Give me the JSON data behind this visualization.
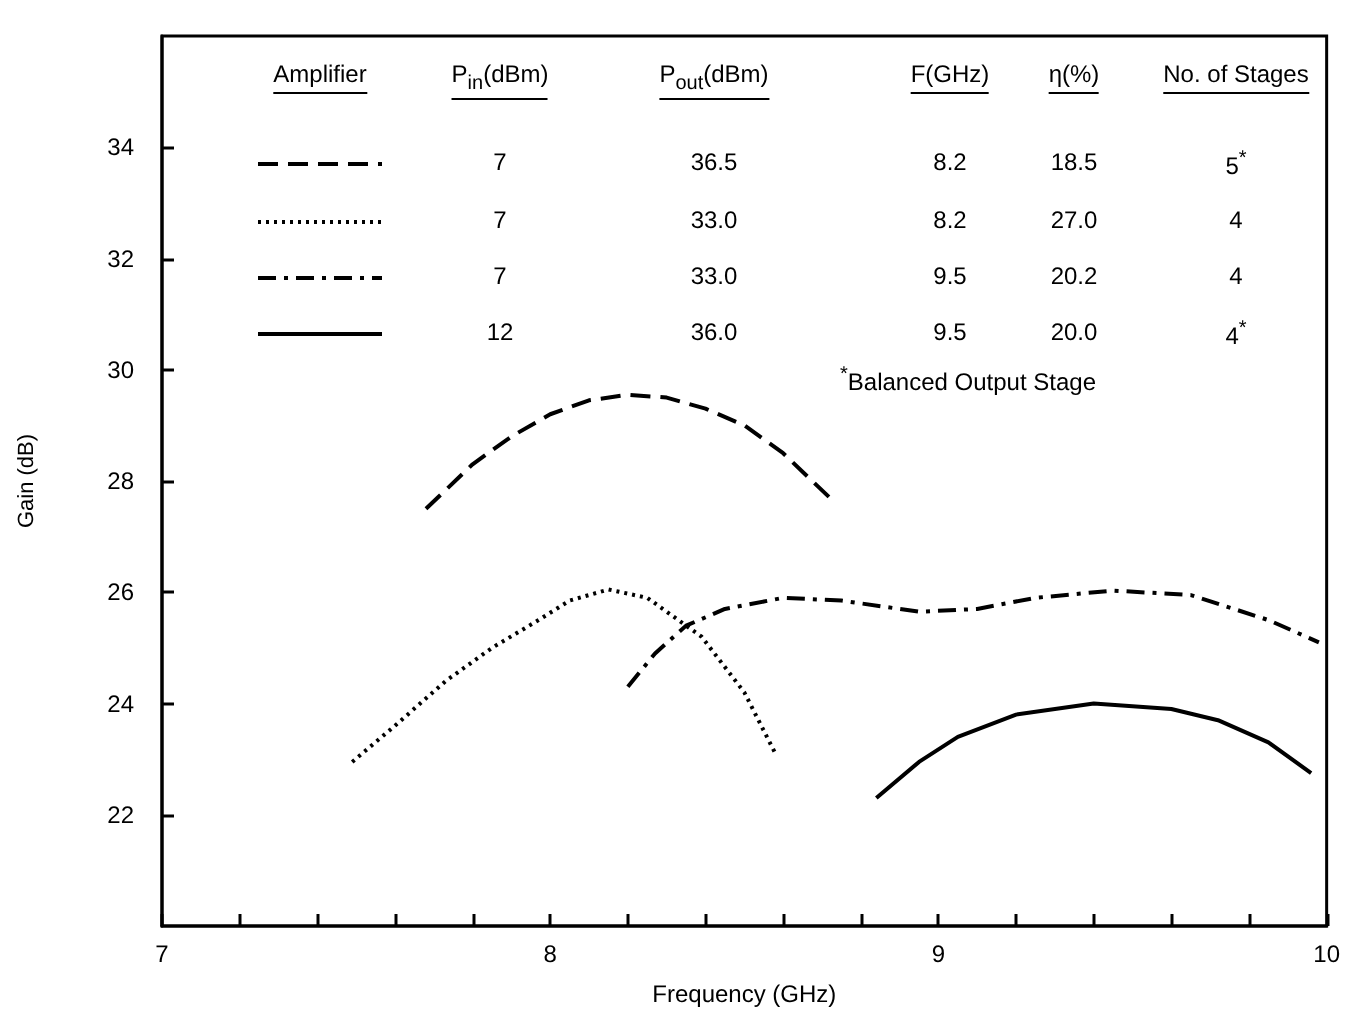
{
  "chart_data": {
    "type": "line",
    "xlabel": "Frequency (GHz)",
    "ylabel": "Gain (dB)",
    "xlim": [
      7,
      10
    ],
    "ylim": [
      20,
      36
    ],
    "xticks": [
      7,
      {
        "value": 7.2,
        "label": null
      },
      {
        "value": 7.4,
        "label": null
      },
      {
        "value": 7.6,
        "label": null
      },
      {
        "value": 7.8,
        "label": null
      },
      8,
      {
        "value": 8.2,
        "label": null
      },
      {
        "value": 8.4,
        "label": null
      },
      {
        "value": 8.6,
        "label": null
      },
      {
        "value": 8.8,
        "label": null
      },
      9,
      {
        "value": 9.2,
        "label": null
      },
      {
        "value": 9.4,
        "label": null
      },
      {
        "value": 9.6,
        "label": null
      },
      {
        "value": 9.8,
        "label": null
      },
      10
    ],
    "yticks": [
      22,
      24,
      26,
      28,
      30,
      32,
      34
    ],
    "grid": false,
    "annotations": [
      "Amplifier",
      "P$_{in}$(dBm)",
      "P$_{out}$(dBm)",
      "F(GHz)",
      "η(%)",
      "No. of Stages",
      "7",
      "36.5",
      "8.2",
      "18.5",
      "5$^{*}$",
      "7",
      "33.0",
      "8.2",
      "27.0",
      "4",
      "7",
      "33.0",
      "9.5",
      "20.2",
      "4",
      "12",
      "36.0",
      "9.5",
      "20.0",
      "4$^{*}$",
      "$^{*}$Balanced Output Stage"
    ],
    "series": [
      {
        "color": "#000000",
        "line_style": "dashed",
        "x": [
          7.68,
          7.8,
          7.9,
          8.0,
          8.1,
          8.2,
          8.3,
          8.4,
          8.5,
          8.6,
          8.72
        ],
        "values": [
          27.5,
          28.3,
          28.8,
          29.2,
          29.45,
          29.55,
          29.5,
          29.3,
          29.0,
          28.5,
          27.7
        ]
      },
      {
        "color": "#000000",
        "line_style": "dotted",
        "x": [
          7.49,
          7.6,
          7.73,
          7.85,
          7.97,
          8.05,
          8.15,
          8.25,
          8.39,
          8.5,
          8.58
        ],
        "values": [
          22.95,
          23.6,
          24.4,
          25.0,
          25.5,
          25.85,
          26.05,
          25.9,
          25.2,
          24.2,
          23.1
        ]
      },
      {
        "color": "#000000",
        "line_style": "dashdot",
        "x": [
          8.2,
          8.27,
          8.35,
          8.45,
          8.6,
          8.75,
          8.95,
          9.1,
          9.25,
          9.45,
          9.65,
          9.85,
          9.98
        ],
        "values": [
          24.3,
          24.9,
          25.4,
          25.7,
          25.9,
          25.85,
          25.65,
          25.7,
          25.9,
          26.03,
          25.95,
          25.5,
          25.1
        ]
      },
      {
        "color": "#000000",
        "line_style": "solid",
        "x": [
          8.84,
          8.95,
          9.05,
          9.2,
          9.4,
          9.6,
          9.72,
          9.85,
          9.96
        ],
        "values": [
          22.3,
          22.95,
          23.4,
          23.8,
          24.0,
          23.9,
          23.7,
          23.3,
          22.75
        ]
      }
    ]
  }
}
